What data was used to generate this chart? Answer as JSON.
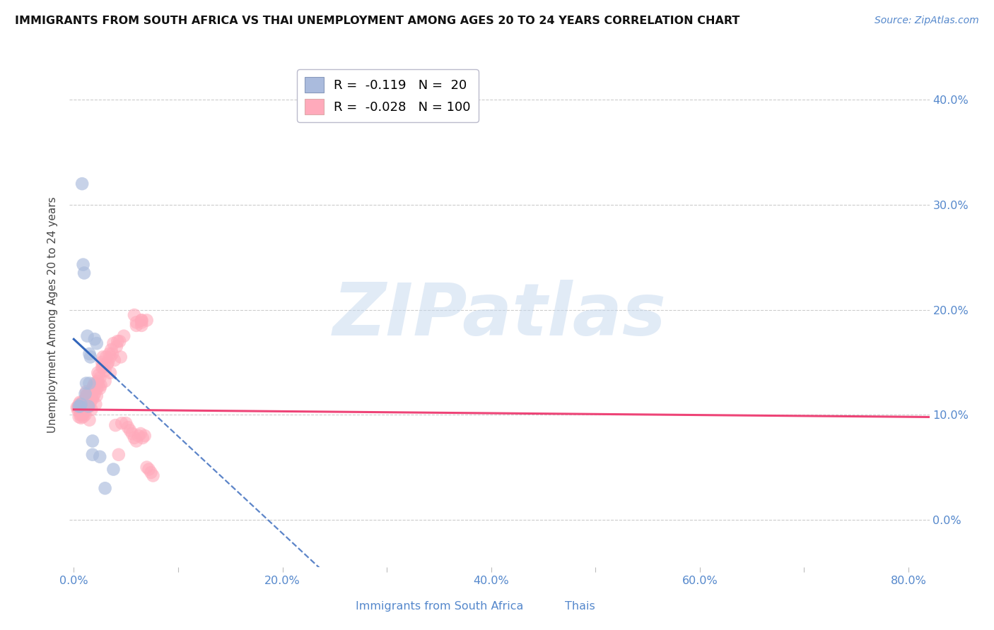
{
  "title": "IMMIGRANTS FROM SOUTH AFRICA VS THAI UNEMPLOYMENT AMONG AGES 20 TO 24 YEARS CORRELATION CHART",
  "source": "Source: ZipAtlas.com",
  "ylabel": "Unemployment Among Ages 20 to 24 years",
  "xlim": [
    -0.004,
    0.82
  ],
  "ylim": [
    -0.045,
    0.435
  ],
  "xticks": [
    0.0,
    0.1,
    0.2,
    0.3,
    0.4,
    0.5,
    0.6,
    0.7,
    0.8
  ],
  "xtick_labels": [
    "0.0%",
    "",
    "20.0%",
    "",
    "40.0%",
    "",
    "60.0%",
    "",
    "80.0%"
  ],
  "yticks": [
    0.0,
    0.1,
    0.2,
    0.3,
    0.4
  ],
  "ytick_labels": [
    "0.0%",
    "10.0%",
    "20.0%",
    "30.0%",
    "40.0%"
  ],
  "legend_blue_r": "-0.119",
  "legend_blue_n": "20",
  "legend_pink_r": "-0.028",
  "legend_pink_n": "100",
  "blue_fill": "#AABBDD",
  "pink_fill": "#FFAABB",
  "blue_line": "#3366BB",
  "pink_line": "#EE4477",
  "axis_tick_color": "#5588CC",
  "grid_color": "#CCCCCC",
  "watermark_color": "#C5D8EE",
  "title_color": "#111111",
  "source_color": "#5588CC",
  "blue_scatter_x": [
    0.005,
    0.006,
    0.007,
    0.008,
    0.009,
    0.01,
    0.011,
    0.012,
    0.013,
    0.014,
    0.015,
    0.015,
    0.016,
    0.018,
    0.018,
    0.02,
    0.022,
    0.025,
    0.03,
    0.038
  ],
  "blue_scatter_y": [
    0.108,
    0.108,
    0.11,
    0.32,
    0.243,
    0.235,
    0.12,
    0.13,
    0.175,
    0.108,
    0.13,
    0.158,
    0.155,
    0.062,
    0.075,
    0.172,
    0.168,
    0.06,
    0.03,
    0.048
  ],
  "pink_scatter_x": [
    0.003,
    0.004,
    0.004,
    0.005,
    0.005,
    0.005,
    0.006,
    0.006,
    0.006,
    0.007,
    0.007,
    0.007,
    0.008,
    0.008,
    0.008,
    0.009,
    0.009,
    0.01,
    0.01,
    0.01,
    0.011,
    0.011,
    0.012,
    0.012,
    0.013,
    0.013,
    0.013,
    0.014,
    0.014,
    0.015,
    0.015,
    0.015,
    0.016,
    0.016,
    0.017,
    0.017,
    0.018,
    0.018,
    0.019,
    0.019,
    0.02,
    0.02,
    0.021,
    0.021,
    0.022,
    0.022,
    0.023,
    0.023,
    0.024,
    0.024,
    0.025,
    0.025,
    0.026,
    0.027,
    0.027,
    0.028,
    0.028,
    0.029,
    0.03,
    0.03,
    0.031,
    0.032,
    0.033,
    0.034,
    0.035,
    0.035,
    0.036,
    0.037,
    0.038,
    0.039,
    0.04,
    0.041,
    0.042,
    0.043,
    0.044,
    0.045,
    0.046,
    0.048,
    0.05,
    0.052,
    0.054,
    0.056,
    0.058,
    0.06,
    0.062,
    0.064,
    0.066,
    0.068,
    0.07,
    0.072,
    0.074,
    0.076,
    0.06,
    0.065,
    0.058,
    0.065,
    0.07,
    0.06,
    0.065,
    0.065
  ],
  "pink_scatter_y": [
    0.107,
    0.104,
    0.107,
    0.098,
    0.108,
    0.11,
    0.1,
    0.108,
    0.112,
    0.097,
    0.105,
    0.11,
    0.1,
    0.107,
    0.112,
    0.098,
    0.108,
    0.102,
    0.108,
    0.112,
    0.1,
    0.115,
    0.118,
    0.122,
    0.11,
    0.115,
    0.12,
    0.112,
    0.118,
    0.095,
    0.108,
    0.12,
    0.112,
    0.122,
    0.105,
    0.118,
    0.125,
    0.115,
    0.118,
    0.128,
    0.12,
    0.13,
    0.11,
    0.128,
    0.118,
    0.125,
    0.14,
    0.132,
    0.128,
    0.138,
    0.125,
    0.135,
    0.128,
    0.145,
    0.15,
    0.145,
    0.155,
    0.148,
    0.132,
    0.142,
    0.155,
    0.148,
    0.15,
    0.158,
    0.14,
    0.155,
    0.162,
    0.158,
    0.168,
    0.152,
    0.09,
    0.165,
    0.17,
    0.062,
    0.17,
    0.155,
    0.092,
    0.175,
    0.092,
    0.088,
    0.085,
    0.082,
    0.078,
    0.075,
    0.08,
    0.082,
    0.078,
    0.08,
    0.05,
    0.048,
    0.045,
    0.042,
    0.185,
    0.19,
    0.195,
    0.19,
    0.19,
    0.188,
    0.185,
    0.188
  ]
}
